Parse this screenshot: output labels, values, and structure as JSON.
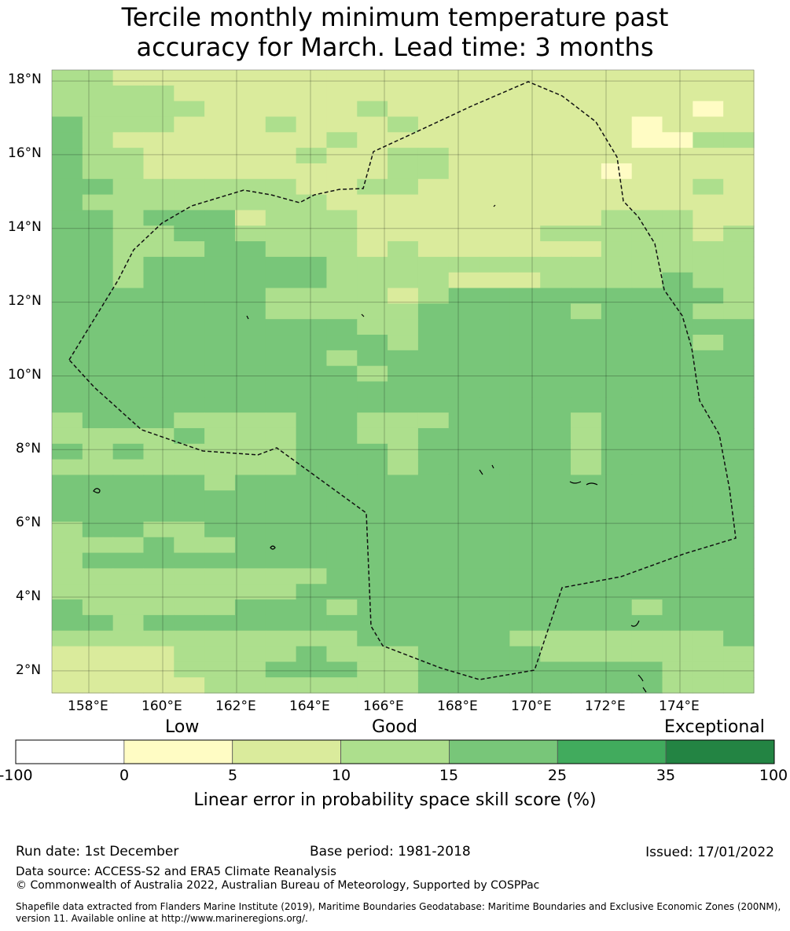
{
  "title_line1": "Tercile monthly minimum temperature past",
  "title_line2": "accuracy for March. Lead time: 3 months",
  "map": {
    "lat_labels": [
      "18°N",
      "16°N",
      "14°N",
      "12°N",
      "10°N",
      "8°N",
      "6°N",
      "4°N",
      "2°N"
    ],
    "lat_values": [
      18,
      16,
      14,
      12,
      10,
      8,
      6,
      4,
      2
    ],
    "lon_labels": [
      "158°E",
      "160°E",
      "162°E",
      "164°E",
      "166°E",
      "168°E",
      "170°E",
      "172°E",
      "174°E"
    ],
    "lon_values": [
      158,
      160,
      162,
      164,
      166,
      168,
      170,
      172,
      174
    ],
    "lon_range": [
      157,
      176
    ],
    "lat_range": [
      1.4,
      18.3
    ],
    "grid_rows": [
      "33222222222222222222222",
      "33332222222222222222222",
      "33333222223222222222212",
      "43332223222322222221222",
      "43222222232222222221133",
      "43322222322332222222222",
      "43322222222332222212222",
      "44333333223322222222232",
      "43333333322222222222222",
      "44344423332222222233322",
      "44334433332222223333323",
      "44333443332322222233333",
      "44344444433333333333333",
      "44344444433332223333433",
      "44444443333234444444443",
      "44444443333344444344433",
      "44444444443344444444444",
      "44444444444344444444434",
      "44444444434444444444444",
      "44444444443444444444444",
      "44444444444444444444444",
      "44444444444444444444444",
      "34443333443334444344444",
      "33334333443344444344444",
      "43433333444344444344444",
      "33333333444344444344444",
      "44444344444444444444444",
      "44444444444444444444444",
      "44444444444444444444444",
      "34433444444444444444444",
      "33343344444444444444444",
      "34444444444444444444444",
      "33333333344444444444444",
      "33333333444444444444444",
      "43333344434444444443444",
      "44344444444444444444444",
      "33333333334444433333334",
      "22223333433344443333333",
      "22223334443344444444333",
      "22222333333344444444333"
    ],
    "color_scale": [
      "#ffffff",
      "#fffcc4",
      "#daeb9c",
      "#addf8d",
      "#78c679",
      "#41ab5d",
      "#238443"
    ]
  },
  "colorbar": {
    "words": [
      "Low",
      "Good",
      "Exceptional"
    ],
    "ticks": [
      "-100",
      "0",
      "5",
      "10",
      "15",
      "25",
      "35",
      "100"
    ],
    "colors": [
      "#ffffff",
      "#fffcc4",
      "#daeb9c",
      "#addf8d",
      "#78c679",
      "#41ab5d",
      "#238443"
    ],
    "caption": "Linear error in probability space skill score (%)"
  },
  "footer": {
    "run_date": "Run date: 1st December",
    "base_period": "Base period: 1981-2018",
    "issued": "Issued: 17/01/2022",
    "data_source": "Data source: ACCESS-S2 and ERA5 Climate Reanalysis",
    "copyright": "© Commonwealth of Australia 2022, Australian Bureau of Meteorology, Supported by COSPPac",
    "shapefile_line1": "Shapefile data extracted from Flanders Marine Institute (2019), Maritime Boundaries Geodatabase: Maritime Boundaries and Exclusive Economic Zones (200NM),",
    "shapefile_line2": "version 11. Available online at http://www.marineregions.org/."
  }
}
